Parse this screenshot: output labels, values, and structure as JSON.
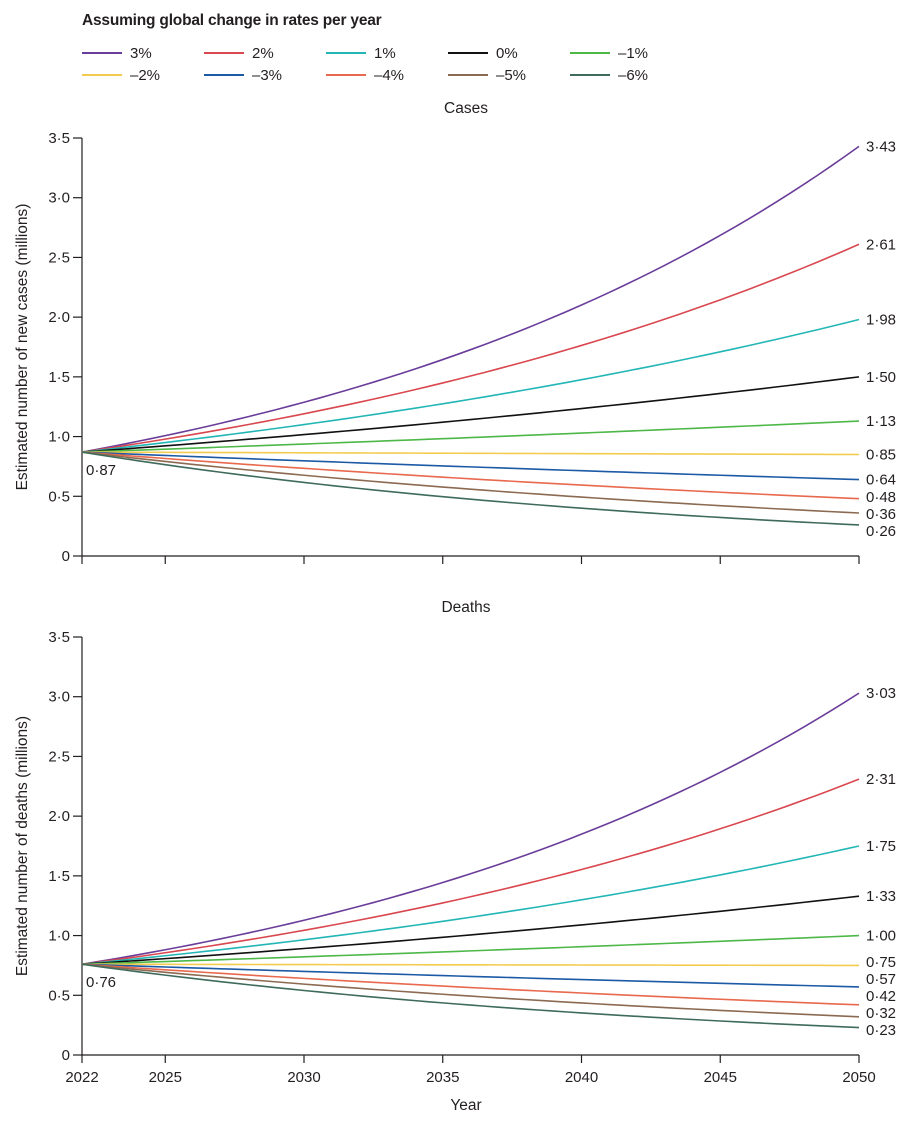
{
  "legend": {
    "title": "Assuming global change in rates per year"
  },
  "chart_data": [
    {
      "type": "line",
      "title": "Cases",
      "xlabel": "",
      "ylabel": "Estimated number of new cases (millions)",
      "x_range": [
        2022,
        2050
      ],
      "ylim": [
        0,
        3.5
      ],
      "y_ticks": [
        "0",
        "0·5",
        "1·0",
        "1·5",
        "2·0",
        "2·5",
        "3·0",
        "3·5"
      ],
      "x_ticks": [
        "2022",
        "2025",
        "2030",
        "2035",
        "2040",
        "2045",
        "2050"
      ],
      "start_value": 0.87,
      "start_label": "0·87",
      "grid": false,
      "legend_position": "top",
      "series": [
        {
          "name": "3%",
          "rate": 0.03,
          "end": 3.43,
          "end_label": "3·43",
          "color": "#6a3d9a"
        },
        {
          "name": "2%",
          "rate": 0.02,
          "end": 2.61,
          "end_label": "2·61",
          "color": "#d9474f"
        },
        {
          "name": "1%",
          "rate": 0.01,
          "end": 1.98,
          "end_label": "1·98",
          "color": "#23b6b6"
        },
        {
          "name": "0%",
          "rate": 0.0,
          "end": 1.5,
          "end_label": "1·50",
          "color": "#111111"
        },
        {
          "name": "–1%",
          "rate": -0.01,
          "end": 1.13,
          "end_label": "1·13",
          "color": "#4db848"
        },
        {
          "name": "–2%",
          "rate": -0.02,
          "end": 0.85,
          "end_label": "0·85",
          "color": "#f3cc4f"
        },
        {
          "name": "–3%",
          "rate": -0.03,
          "end": 0.64,
          "end_label": "0·64",
          "color": "#1c5aa6"
        },
        {
          "name": "–4%",
          "rate": -0.04,
          "end": 0.48,
          "end_label": "0·48",
          "color": "#e8694d"
        },
        {
          "name": "–5%",
          "rate": -0.05,
          "end": 0.36,
          "end_label": "0·36",
          "color": "#8c6a52"
        },
        {
          "name": "–6%",
          "rate": -0.06,
          "end": 0.26,
          "end_label": "0·26",
          "color": "#3f6b5c"
        }
      ]
    },
    {
      "type": "line",
      "title": "Deaths",
      "xlabel": "Year",
      "ylabel": "Estimated number of deaths (millions)",
      "x_range": [
        2022,
        2050
      ],
      "ylim": [
        0,
        3.5
      ],
      "y_ticks": [
        "0",
        "0·5",
        "1·0",
        "1·5",
        "2·0",
        "2·5",
        "3·0",
        "3·5"
      ],
      "x_ticks": [
        "2022",
        "2025",
        "2030",
        "2035",
        "2040",
        "2045",
        "2050"
      ],
      "start_value": 0.76,
      "start_label": "0·76",
      "grid": false,
      "legend_position": "top",
      "series": [
        {
          "name": "3%",
          "rate": 0.03,
          "end": 3.03,
          "end_label": "3·03",
          "color": "#6a3d9a"
        },
        {
          "name": "2%",
          "rate": 0.02,
          "end": 2.31,
          "end_label": "2·31",
          "color": "#d9474f"
        },
        {
          "name": "1%",
          "rate": 0.01,
          "end": 1.75,
          "end_label": "1·75",
          "color": "#23b6b6"
        },
        {
          "name": "0%",
          "rate": 0.0,
          "end": 1.33,
          "end_label": "1·33",
          "color": "#111111"
        },
        {
          "name": "–1%",
          "rate": -0.01,
          "end": 1.0,
          "end_label": "1·00",
          "color": "#4db848"
        },
        {
          "name": "–2%",
          "rate": -0.02,
          "end": 0.75,
          "end_label": "0·75",
          "color": "#f3cc4f"
        },
        {
          "name": "–3%",
          "rate": -0.03,
          "end": 0.57,
          "end_label": "0·57",
          "color": "#1c5aa6"
        },
        {
          "name": "–4%",
          "rate": -0.04,
          "end": 0.42,
          "end_label": "0·42",
          "color": "#e8694d"
        },
        {
          "name": "–5%",
          "rate": -0.05,
          "end": 0.32,
          "end_label": "0·32",
          "color": "#8c6a52"
        },
        {
          "name": "–6%",
          "rate": -0.06,
          "end": 0.23,
          "end_label": "0·23",
          "color": "#3f6b5c"
        }
      ]
    }
  ]
}
